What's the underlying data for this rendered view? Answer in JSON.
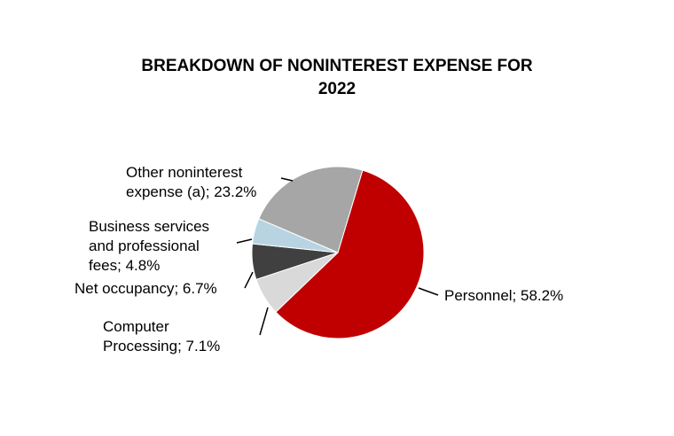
{
  "chart_data": {
    "type": "pie",
    "title": [
      "BREAKDOWN OF NONINTEREST EXPENSE FOR",
      "2022"
    ],
    "slices": [
      {
        "label_lines": [
          "Personnel; 58.2%"
        ],
        "value": 58.2,
        "color": "#c00000"
      },
      {
        "label_lines": [
          "Computer",
          "Processing; 7.1%"
        ],
        "value": 7.1,
        "color": "#d9d9d9"
      },
      {
        "label_lines": [
          "Net occupancy; 6.7%"
        ],
        "value": 6.7,
        "color": "#404040"
      },
      {
        "label_lines": [
          "Business services",
          "and professional",
          "fees; 4.8%"
        ],
        "value": 4.8,
        "color": "#b8d4e3"
      },
      {
        "label_lines": [
          "Other noninterest",
          "expense (a); 23.2%"
        ],
        "value": 23.2,
        "color": "#a6a6a6"
      }
    ],
    "start_angle_deg": 16.7,
    "direction": "clockwise",
    "legend": "none"
  }
}
